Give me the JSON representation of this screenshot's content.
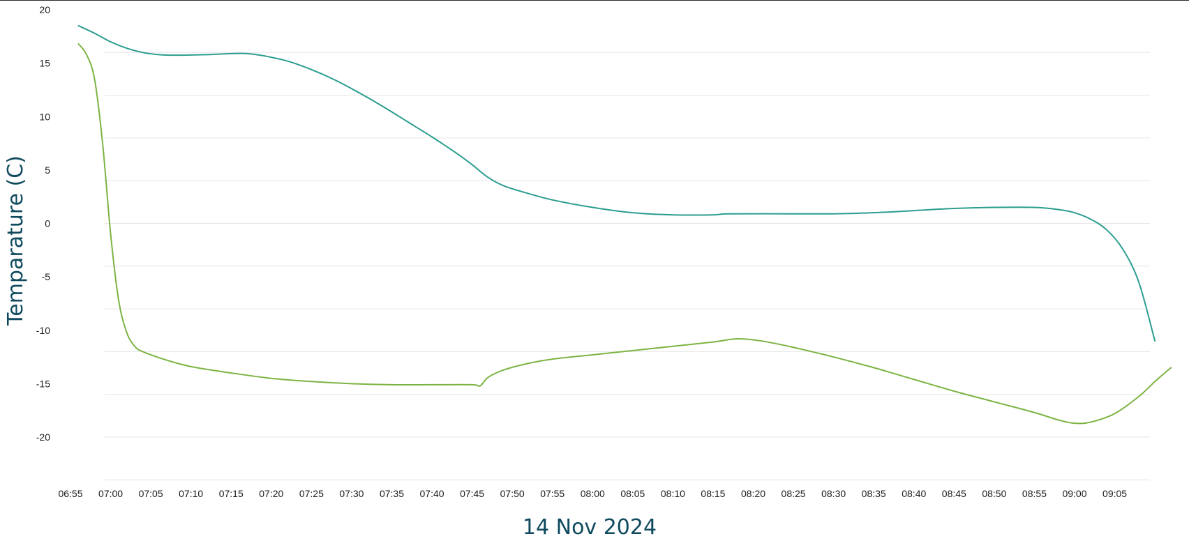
{
  "chart_data": {
    "type": "line",
    "title": "",
    "xlabel": "14 Nov 2024",
    "ylabel": "Temparature (C)",
    "ylim": [
      -24,
      20
    ],
    "grid": true,
    "legend": "none",
    "x_tick_labels": [
      "06:55",
      "07:00",
      "07:05",
      "07:10",
      "07:15",
      "07:20",
      "07:25",
      "07:30",
      "07:35",
      "07:40",
      "07:45",
      "07:50",
      "07:55",
      "08:00",
      "08:05",
      "08:10",
      "08:15",
      "08:20",
      "08:25",
      "08:30",
      "08:35",
      "08:40",
      "08:45",
      "08:50",
      "08:55",
      "09:00",
      "09:05"
    ],
    "y_tick_labels": [
      "20",
      "15",
      "10",
      "5",
      "0",
      "-5",
      "-10",
      "-15",
      "-20"
    ],
    "y_tick_values": [
      20,
      15,
      10,
      5,
      0,
      -5,
      -10,
      -15,
      -20
    ],
    "gridline_values": [
      16,
      12,
      8,
      4,
      0,
      -4,
      -8,
      -12,
      -16,
      -20,
      -24
    ],
    "series": [
      {
        "color": "#2a9d8f",
        "points": [
          [
            "06:56",
            18.5
          ],
          [
            "06:58",
            17.8
          ],
          [
            "07:00",
            17.0
          ],
          [
            "07:02",
            16.4
          ],
          [
            "07:04",
            16.0
          ],
          [
            "07:06",
            15.8
          ],
          [
            "07:08",
            15.75
          ],
          [
            "07:12",
            15.8
          ],
          [
            "07:15",
            15.9
          ],
          [
            "07:17",
            15.9
          ],
          [
            "07:19",
            15.7
          ],
          [
            "07:22",
            15.2
          ],
          [
            "07:25",
            14.4
          ],
          [
            "07:28",
            13.4
          ],
          [
            "07:31",
            12.2
          ],
          [
            "07:34",
            10.9
          ],
          [
            "07:37",
            9.5
          ],
          [
            "07:40",
            8.1
          ],
          [
            "07:43",
            6.6
          ],
          [
            "07:45",
            5.5
          ],
          [
            "07:47",
            4.3
          ],
          [
            "07:49",
            3.5
          ],
          [
            "07:52",
            2.8
          ],
          [
            "07:55",
            2.2
          ],
          [
            "08:00",
            1.5
          ],
          [
            "08:05",
            1.0
          ],
          [
            "08:10",
            0.8
          ],
          [
            "08:15",
            0.8
          ],
          [
            "08:17",
            0.9
          ],
          [
            "08:25",
            0.9
          ],
          [
            "08:30",
            0.9
          ],
          [
            "08:35",
            1.0
          ],
          [
            "08:40",
            1.2
          ],
          [
            "08:45",
            1.4
          ],
          [
            "08:50",
            1.5
          ],
          [
            "08:55",
            1.5
          ],
          [
            "08:58",
            1.3
          ],
          [
            "09:00",
            1.0
          ],
          [
            "09:02",
            0.4
          ],
          [
            "09:04",
            -0.6
          ],
          [
            "09:06",
            -2.4
          ],
          [
            "09:08",
            -5.5
          ],
          [
            "09:10",
            -11.0
          ]
        ]
      },
      {
        "color": "#7cb342",
        "points": [
          [
            "06:56",
            16.8
          ],
          [
            "06:57",
            15.8
          ],
          [
            "06:58",
            13.5
          ],
          [
            "06:59",
            7.5
          ],
          [
            "07:00",
            -1.0
          ],
          [
            "07:01",
            -7.2
          ],
          [
            "07:02",
            -10.2
          ],
          [
            "07:03",
            -11.5
          ],
          [
            "07:04",
            -12.0
          ],
          [
            "07:07",
            -12.8
          ],
          [
            "07:10",
            -13.4
          ],
          [
            "07:15",
            -14.0
          ],
          [
            "07:20",
            -14.5
          ],
          [
            "07:25",
            -14.8
          ],
          [
            "07:30",
            -15.0
          ],
          [
            "07:35",
            -15.1
          ],
          [
            "07:40",
            -15.1
          ],
          [
            "07:45",
            -15.1
          ],
          [
            "07:46",
            -15.2
          ],
          [
            "07:47",
            -14.4
          ],
          [
            "07:49",
            -13.7
          ],
          [
            "07:52",
            -13.1
          ],
          [
            "07:55",
            -12.7
          ],
          [
            "08:00",
            -12.3
          ],
          [
            "08:05",
            -11.9
          ],
          [
            "08:10",
            -11.5
          ],
          [
            "08:15",
            -11.1
          ],
          [
            "08:18",
            -10.8
          ],
          [
            "08:21",
            -11.0
          ],
          [
            "08:25",
            -11.6
          ],
          [
            "08:30",
            -12.5
          ],
          [
            "08:35",
            -13.5
          ],
          [
            "08:40",
            -14.6
          ],
          [
            "08:45",
            -15.7
          ],
          [
            "08:50",
            -16.7
          ],
          [
            "08:55",
            -17.7
          ],
          [
            "08:58",
            -18.4
          ],
          [
            "09:00",
            -18.7
          ],
          [
            "09:02",
            -18.6
          ],
          [
            "09:05",
            -17.8
          ],
          [
            "09:08",
            -16.2
          ],
          [
            "09:10",
            -14.8
          ],
          [
            "09:12",
            -13.5
          ]
        ]
      }
    ]
  }
}
